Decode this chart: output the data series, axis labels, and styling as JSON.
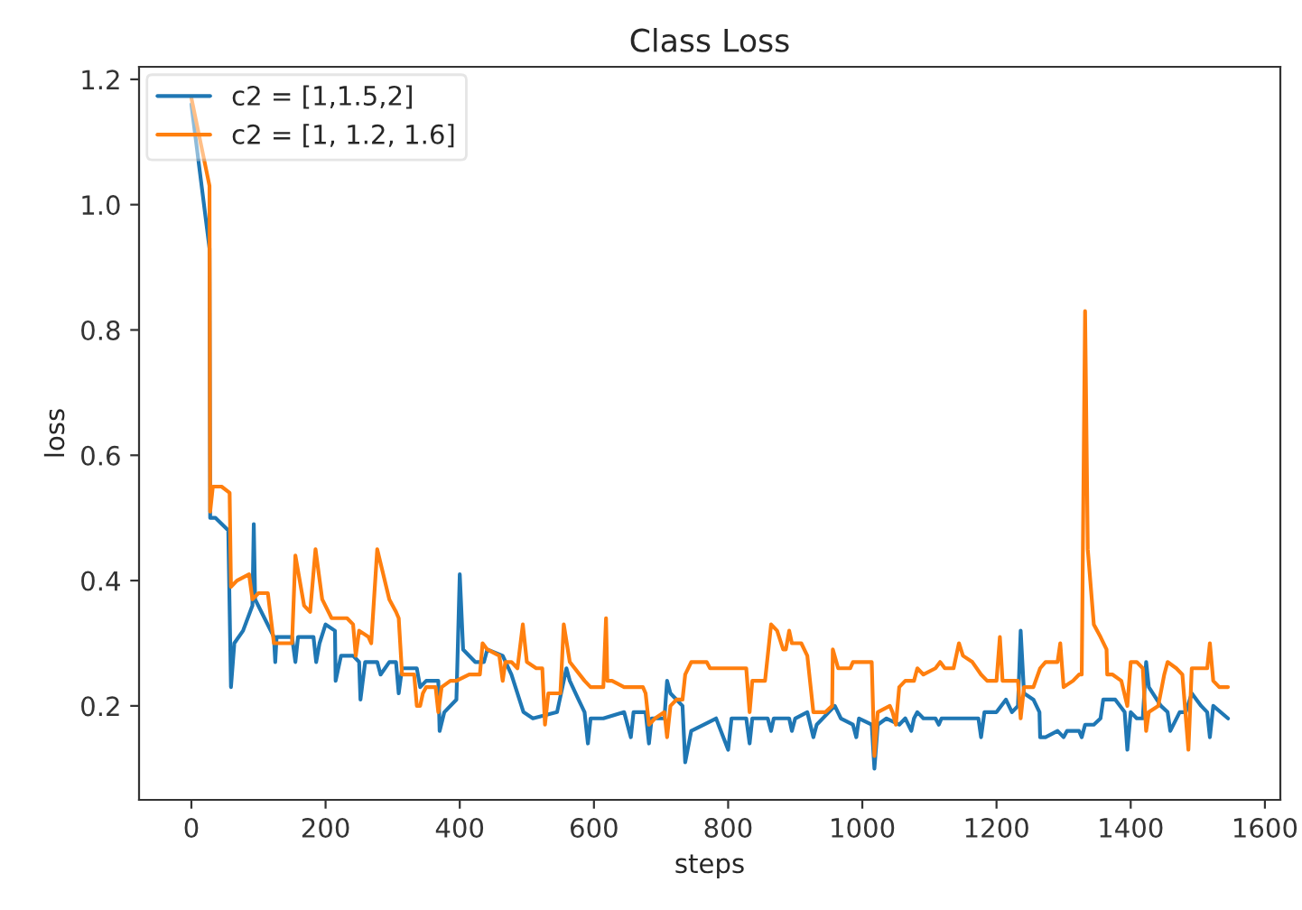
{
  "chart_data": {
    "type": "line",
    "title": "Class Loss",
    "xlabel": "steps",
    "ylabel": "loss",
    "xlim": [
      -78,
      1623
    ],
    "ylim": [
      0.05,
      1.22
    ],
    "xticks": [
      0,
      200,
      400,
      600,
      800,
      1000,
      1200,
      1400,
      1600
    ],
    "yticks": [
      {
        "value": 0.2,
        "label": "0.2"
      },
      {
        "value": 0.4,
        "label": "0.4"
      },
      {
        "value": 0.6,
        "label": "0.6"
      },
      {
        "value": 0.8,
        "label": "0.8"
      },
      {
        "value": 1.0,
        "label": "1.0"
      },
      {
        "value": 1.2,
        "label": "1.2"
      }
    ],
    "grid": false,
    "legend": "top left",
    "marker": "none",
    "line_style": "solid",
    "series": [
      {
        "name": "c2 = [1,1.5,2]",
        "color": "#1f77b4",
        "x": [
          0,
          27,
          28,
          36,
          55,
          59,
          64,
          77,
          91,
          93,
          95,
          109,
          123,
          125,
          127,
          150,
          155,
          159,
          182,
          186,
          191,
          200,
          214,
          215,
          223,
          241,
          250,
          252,
          259,
          277,
          282,
          295,
          305,
          309,
          314,
          336,
          341,
          350,
          368,
          370,
          377,
          395,
          400,
          405,
          423,
          436,
          441,
          464,
          477,
          495,
          509,
          545,
          559,
          564,
          577,
          586,
          591,
          595,
          614,
          645,
          655,
          659,
          677,
          682,
          686,
          705,
          709,
          714,
          723,
          732,
          736,
          745,
          764,
          782,
          800,
          805,
          827,
          832,
          836,
          859,
          864,
          868,
          891,
          895,
          900,
          918,
          927,
          932,
          959,
          968,
          986,
          991,
          995,
          1014,
          1018,
          1023,
          1036,
          1055,
          1064,
          1073,
          1077,
          1082,
          1091,
          1109,
          1114,
          1118,
          1145,
          1155,
          1173,
          1177,
          1182,
          1200,
          1214,
          1223,
          1232,
          1236,
          1241,
          1255,
          1264,
          1265,
          1273,
          1291,
          1300,
          1305,
          1323,
          1327,
          1332,
          1345,
          1355,
          1359,
          1377,
          1391,
          1395,
          1400,
          1409,
          1418,
          1423,
          1427,
          1445,
          1455,
          1459,
          1473,
          1482,
          1491,
          1505,
          1514,
          1518,
          1523,
          1545
        ],
        "values": [
          1.16,
          0.93,
          0.5,
          0.5,
          0.48,
          0.23,
          0.3,
          0.32,
          0.36,
          0.49,
          0.37,
          0.34,
          0.31,
          0.27,
          0.31,
          0.31,
          0.27,
          0.31,
          0.31,
          0.27,
          0.3,
          0.33,
          0.32,
          0.24,
          0.28,
          0.28,
          0.27,
          0.21,
          0.27,
          0.27,
          0.25,
          0.27,
          0.27,
          0.22,
          0.26,
          0.26,
          0.23,
          0.24,
          0.24,
          0.16,
          0.19,
          0.21,
          0.41,
          0.29,
          0.27,
          0.27,
          0.29,
          0.28,
          0.25,
          0.19,
          0.18,
          0.19,
          0.26,
          0.24,
          0.21,
          0.19,
          0.14,
          0.18,
          0.18,
          0.19,
          0.15,
          0.19,
          0.19,
          0.14,
          0.18,
          0.18,
          0.24,
          0.22,
          0.21,
          0.2,
          0.11,
          0.16,
          0.17,
          0.18,
          0.13,
          0.18,
          0.18,
          0.14,
          0.18,
          0.18,
          0.16,
          0.18,
          0.18,
          0.16,
          0.18,
          0.19,
          0.15,
          0.17,
          0.2,
          0.18,
          0.17,
          0.15,
          0.18,
          0.17,
          0.1,
          0.17,
          0.18,
          0.17,
          0.18,
          0.16,
          0.18,
          0.19,
          0.18,
          0.18,
          0.17,
          0.18,
          0.18,
          0.18,
          0.18,
          0.15,
          0.19,
          0.19,
          0.21,
          0.19,
          0.2,
          0.32,
          0.22,
          0.21,
          0.19,
          0.15,
          0.15,
          0.16,
          0.15,
          0.16,
          0.16,
          0.15,
          0.17,
          0.17,
          0.18,
          0.21,
          0.21,
          0.19,
          0.13,
          0.19,
          0.18,
          0.18,
          0.27,
          0.23,
          0.2,
          0.19,
          0.16,
          0.19,
          0.19,
          0.22,
          0.2,
          0.19,
          0.15,
          0.2,
          0.18
        ]
      },
      {
        "name": "c2 = [1, 1.2, 1.6]",
        "color": "#ff7f0e",
        "x": [
          0,
          27,
          28,
          32,
          45,
          57,
          59,
          68,
          86,
          91,
          100,
          114,
          123,
          132,
          150,
          155,
          168,
          177,
          185,
          195,
          209,
          218,
          232,
          241,
          245,
          250,
          264,
          268,
          277,
          295,
          305,
          309,
          314,
          332,
          336,
          341,
          345,
          350,
          364,
          368,
          373,
          386,
          395,
          414,
          430,
          434,
          441,
          459,
          464,
          468,
          477,
          486,
          494,
          500,
          514,
          523,
          527,
          532,
          550,
          555,
          564,
          586,
          595,
          614,
          618,
          620,
          627,
          645,
          673,
          677,
          682,
          691,
          705,
          709,
          714,
          723,
          732,
          736,
          745,
          755,
          768,
          773,
          782,
          791,
          800,
          809,
          827,
          832,
          836,
          855,
          859,
          864,
          873,
          882,
          886,
          891,
          895,
          909,
          918,
          927,
          932,
          945,
          955,
          956,
          964,
          982,
          986,
          1000,
          1014,
          1018,
          1023,
          1041,
          1045,
          1050,
          1055,
          1064,
          1077,
          1082,
          1091,
          1109,
          1116,
          1123,
          1136,
          1144,
          1150,
          1164,
          1177,
          1186,
          1200,
          1205,
          1209,
          1232,
          1236,
          1241,
          1255,
          1265,
          1273,
          1291,
          1295,
          1300,
          1314,
          1323,
          1327,
          1332,
          1336,
          1345,
          1355,
          1364,
          1365,
          1373,
          1386,
          1395,
          1400,
          1409,
          1418,
          1423,
          1427,
          1441,
          1450,
          1455,
          1468,
          1477,
          1486,
          1491,
          1505,
          1514,
          1518,
          1523,
          1532,
          1545
        ],
        "values": [
          1.17,
          1.03,
          0.51,
          0.55,
          0.55,
          0.54,
          0.39,
          0.4,
          0.41,
          0.37,
          0.38,
          0.38,
          0.3,
          0.3,
          0.3,
          0.44,
          0.36,
          0.35,
          0.45,
          0.37,
          0.34,
          0.34,
          0.34,
          0.33,
          0.28,
          0.32,
          0.31,
          0.3,
          0.45,
          0.37,
          0.35,
          0.34,
          0.25,
          0.25,
          0.2,
          0.2,
          0.22,
          0.23,
          0.23,
          0.19,
          0.23,
          0.24,
          0.24,
          0.25,
          0.25,
          0.3,
          0.29,
          0.28,
          0.24,
          0.27,
          0.27,
          0.26,
          0.33,
          0.27,
          0.26,
          0.26,
          0.17,
          0.22,
          0.22,
          0.33,
          0.27,
          0.24,
          0.23,
          0.23,
          0.34,
          0.24,
          0.24,
          0.23,
          0.23,
          0.22,
          0.17,
          0.18,
          0.19,
          0.15,
          0.2,
          0.21,
          0.21,
          0.25,
          0.27,
          0.27,
          0.27,
          0.26,
          0.26,
          0.26,
          0.26,
          0.26,
          0.26,
          0.19,
          0.24,
          0.24,
          0.28,
          0.33,
          0.32,
          0.29,
          0.29,
          0.32,
          0.3,
          0.3,
          0.28,
          0.19,
          0.19,
          0.19,
          0.2,
          0.29,
          0.26,
          0.26,
          0.27,
          0.27,
          0.27,
          0.12,
          0.19,
          0.2,
          0.19,
          0.17,
          0.23,
          0.24,
          0.24,
          0.26,
          0.25,
          0.26,
          0.27,
          0.26,
          0.26,
          0.3,
          0.28,
          0.27,
          0.25,
          0.24,
          0.24,
          0.31,
          0.24,
          0.24,
          0.18,
          0.23,
          0.23,
          0.26,
          0.27,
          0.27,
          0.3,
          0.23,
          0.24,
          0.25,
          0.25,
          0.83,
          0.45,
          0.33,
          0.31,
          0.29,
          0.25,
          0.25,
          0.24,
          0.2,
          0.27,
          0.27,
          0.26,
          0.16,
          0.19,
          0.2,
          0.25,
          0.27,
          0.26,
          0.25,
          0.13,
          0.26,
          0.26,
          0.26,
          0.3,
          0.24,
          0.23,
          0.23
        ]
      }
    ]
  }
}
